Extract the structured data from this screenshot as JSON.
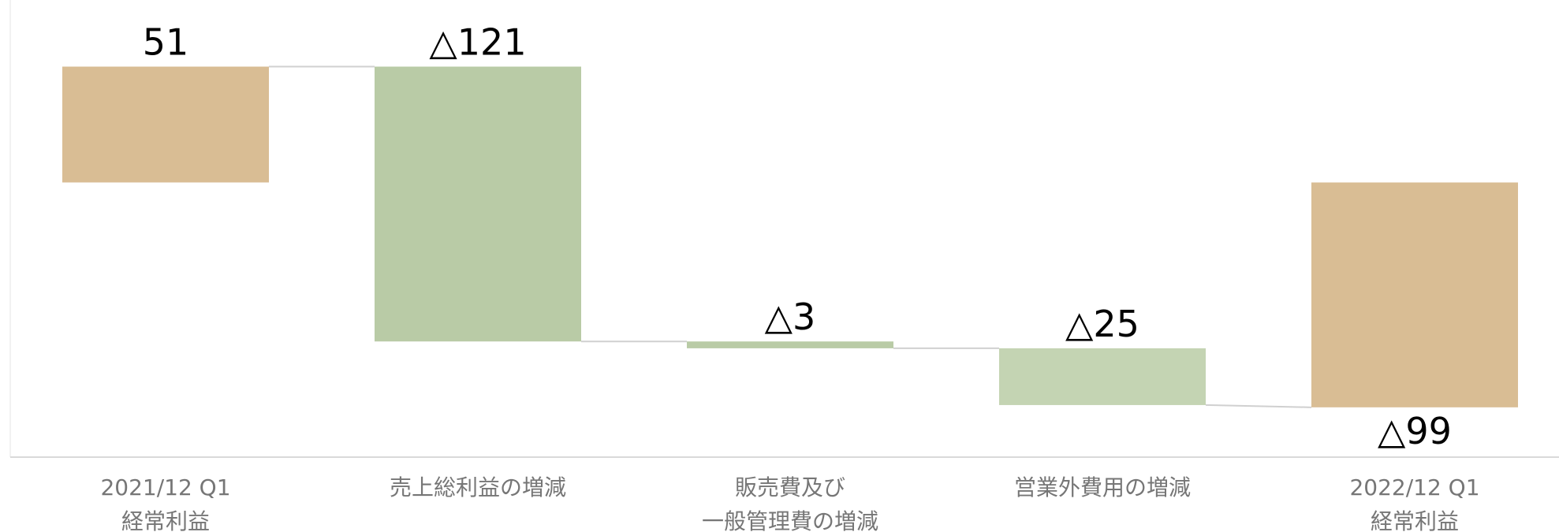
{
  "chart_data": {
    "type": "waterfall",
    "categories": [
      [
        "2021/12 Q1",
        "経常利益"
      ],
      [
        "売上総利益の増減"
      ],
      [
        "販売費及び",
        "一般管理費の増減"
      ],
      [
        "営業外費用の増減"
      ],
      [
        "2022/12 Q1",
        "経常利益"
      ]
    ],
    "bars": [
      {
        "kind": "total",
        "start": 0,
        "end": 51,
        "label": "51",
        "color": "#d9bd94"
      },
      {
        "kind": "delta",
        "start": 51,
        "end": -70,
        "label": "△121",
        "color": "#b9cba6"
      },
      {
        "kind": "delta",
        "start": -70,
        "end": -73,
        "label": "△3",
        "color": "#b9cba6"
      },
      {
        "kind": "delta",
        "start": -73,
        "end": -98,
        "label": "△25",
        "color": "#c4d4b3"
      },
      {
        "kind": "total",
        "start": 0,
        "end": -99,
        "label": "△99",
        "color": "#d9bd94"
      }
    ],
    "ylim": [
      -121,
      80
    ],
    "grid": false,
    "colors": {
      "total": "#d9bd94",
      "decrease": "#b9cba6",
      "axis": "#d9d9d9",
      "connector": "#d0d0d0",
      "category_text": "#767676"
    }
  }
}
